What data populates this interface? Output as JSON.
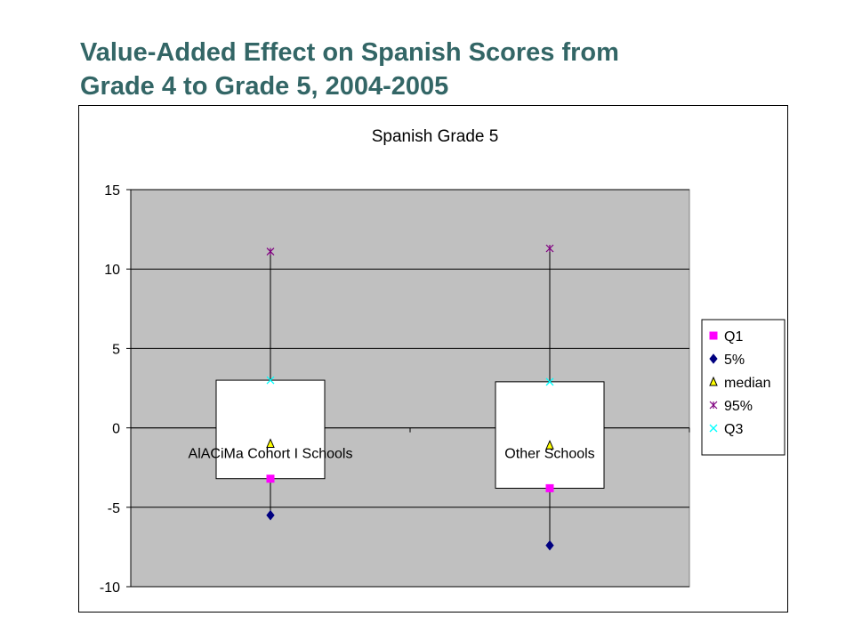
{
  "slide": {
    "title_line1": "Value-Added Effect on Spanish Scores from",
    "title_line2": "Grade 4 to Grade 5, 2004-2005"
  },
  "colors": {
    "plot_background": "#c0c0c0",
    "gridline": "#000000",
    "box_fill": "#ffffff",
    "title_text": "#336666"
  },
  "chart_data": {
    "type": "box",
    "title": "Spanish Grade 5",
    "xlabel": "",
    "ylabel": "",
    "ylim": [
      -10,
      15
    ],
    "yticks": [
      15,
      10,
      5,
      0,
      -5,
      -10
    ],
    "grid": true,
    "legend_position": "right",
    "categories": [
      "AlACiMa Cohort I Schools",
      "Other Schools"
    ],
    "series": [
      {
        "name": "Q1",
        "marker": "square",
        "color": "#ff00ff",
        "values": [
          -3.2,
          -3.8
        ]
      },
      {
        "name": "5%",
        "marker": "diamond",
        "color": "#000080",
        "values": [
          -5.5,
          -7.4
        ]
      },
      {
        "name": "median",
        "marker": "triangle",
        "color": "#ffff00",
        "values": [
          -1.0,
          -1.1
        ]
      },
      {
        "name": "95%",
        "marker": "star",
        "color": "#800080",
        "values": [
          11.1,
          11.3
        ]
      },
      {
        "name": "Q3",
        "marker": "x",
        "color": "#00ffff",
        "values": [
          3.0,
          2.9
        ]
      }
    ]
  }
}
